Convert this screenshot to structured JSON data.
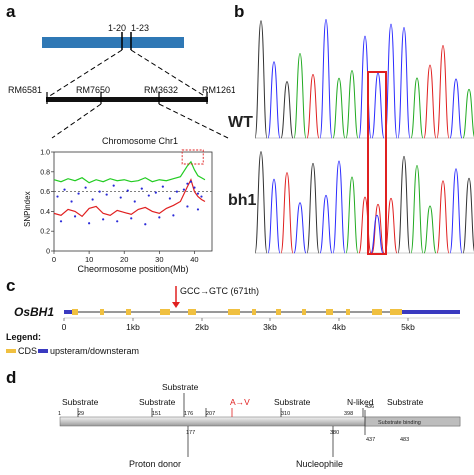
{
  "panel_a": {
    "letter": "a",
    "markers_top": [
      "1-20",
      "1-23"
    ],
    "markers_mid": [
      "RM6581",
      "RM7650",
      "RM3632",
      "RM1261"
    ],
    "chart_title": "Chromosome Chr1",
    "xlabel": "Cheormosome position(Mb)",
    "ylabel": "SNPindex",
    "x_ticks": [
      "0",
      "10",
      "20",
      "30",
      "40"
    ],
    "y_ticks": [
      "0",
      "0.2",
      "0.4",
      "0.6",
      "0.8",
      "1.0"
    ]
  },
  "panel_b": {
    "letter": "b",
    "row_labels": [
      "WT",
      "bh1"
    ]
  },
  "panel_c": {
    "letter": "c",
    "gene": "OsBH1",
    "mutation": "GCC→GTC (671th)",
    "scale": [
      "0",
      "1kb",
      "2kb",
      "3kb",
      "4kb",
      "5kb"
    ],
    "legend_title": "Legend:",
    "legend_cds": "CDS",
    "legend_utr": "upsteram/downsteram"
  },
  "panel_d": {
    "letter": "d",
    "top_labels": [
      "Substrate",
      "Substrate",
      "Substrate",
      "Substrate",
      "N-liked",
      "Substrate"
    ],
    "mutation": "A→V",
    "top_positions": [
      "1",
      "29",
      "151",
      "176",
      "207",
      "310",
      "398",
      "436"
    ],
    "bottom_positions": [
      "177",
      "380",
      "437",
      "483"
    ],
    "substrate_binding": "Substrate binding",
    "bottom_labels": [
      "Proton donor",
      "Nucleophile"
    ]
  },
  "chart_data": {
    "type": "scatter",
    "title": "Chromosome Chr1",
    "xlabel": "Cheormosome position(Mb)",
    "ylabel": "SNPindex",
    "xlim": [
      0,
      45
    ],
    "ylim": [
      0,
      1.0
    ],
    "series": [
      {
        "color": "#22cc22",
        "kind": "line",
        "x": [
          0,
          2,
          4,
          6,
          8,
          10,
          12,
          14,
          16,
          18,
          20,
          22,
          24,
          26,
          28,
          30,
          32,
          34,
          36,
          38,
          39,
          40,
          41,
          42,
          43
        ],
        "y": [
          0.72,
          0.7,
          0.73,
          0.71,
          0.74,
          0.69,
          0.72,
          0.7,
          0.73,
          0.71,
          0.72,
          0.7,
          0.71,
          0.74,
          0.7,
          0.72,
          0.71,
          0.73,
          0.75,
          0.86,
          0.9,
          0.82,
          0.76,
          0.74,
          0.72
        ]
      },
      {
        "color": "#e02020",
        "kind": "line",
        "x": [
          0,
          2,
          4,
          6,
          8,
          10,
          12,
          14,
          16,
          18,
          20,
          22,
          24,
          26,
          28,
          30,
          32,
          34,
          36,
          38,
          39,
          40,
          41,
          42,
          43
        ],
        "y": [
          0.38,
          0.36,
          0.42,
          0.4,
          0.35,
          0.43,
          0.45,
          0.38,
          0.36,
          0.41,
          0.39,
          0.37,
          0.42,
          0.44,
          0.4,
          0.38,
          0.43,
          0.46,
          0.5,
          0.65,
          0.72,
          0.6,
          0.55,
          0.52,
          0.5
        ]
      },
      {
        "color": "#2a2ad8",
        "kind": "points",
        "x": [
          1,
          3,
          5,
          7,
          9,
          11,
          13,
          15,
          17,
          19,
          21,
          23,
          25,
          27,
          29,
          31,
          33,
          35,
          37,
          38,
          39,
          40,
          41,
          42,
          2,
          6,
          10,
          14,
          18,
          22,
          26,
          30,
          34,
          38,
          41
        ],
        "y": [
          0.55,
          0.62,
          0.5,
          0.58,
          0.64,
          0.52,
          0.6,
          0.57,
          0.66,
          0.54,
          0.61,
          0.5,
          0.63,
          0.56,
          0.59,
          0.65,
          0.53,
          0.6,
          0.62,
          0.68,
          0.7,
          0.64,
          0.58,
          0.55,
          0.3,
          0.35,
          0.28,
          0.32,
          0.3,
          0.33,
          0.27,
          0.34,
          0.36,
          0.45,
          0.42
        ]
      }
    ],
    "reference_line": 0.6
  }
}
